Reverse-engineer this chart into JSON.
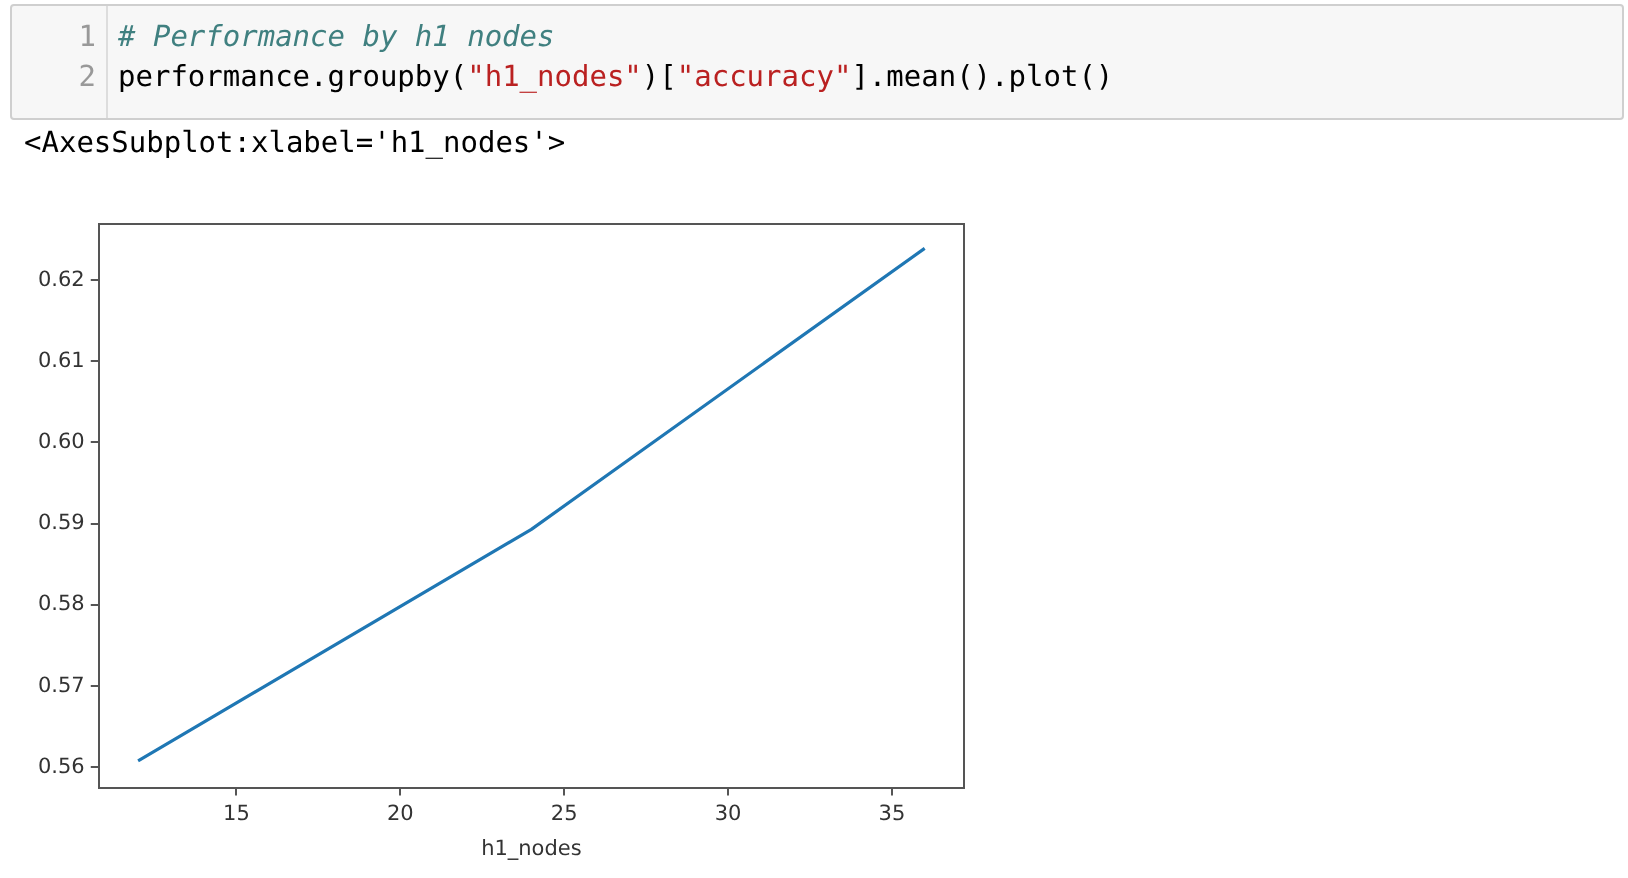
{
  "chart_data": {
    "type": "line",
    "xlabel": "h1_nodes",
    "x": [
      12,
      24,
      36
    ],
    "series": [
      {
        "color": "#1f77b4",
        "values": [
          0.5608,
          0.5893,
          0.6239
        ]
      }
    ],
    "xlim": [
      10.8,
      37.2
    ],
    "xticks": [
      15,
      20,
      25,
      30,
      35
    ],
    "ylim": [
      0.5575,
      0.6269
    ],
    "yticks": [
      {
        "value": 0.56,
        "label": "0.56"
      },
      {
        "value": 0.57,
        "label": "0.57"
      },
      {
        "value": 0.58,
        "label": "0.58"
      },
      {
        "value": 0.59,
        "label": "0.59"
      },
      {
        "value": 0.6,
        "label": "0.60"
      },
      {
        "value": 0.61,
        "label": "0.61"
      },
      {
        "value": 0.62,
        "label": "0.62"
      }
    ],
    "annotations": [
      "1",
      "# Performance by h1 nodes",
      "2",
      "performance.groupby(\"h1_nodes\")[\"accuracy\"].mean().plot()",
      "<AxesSubplot:xlabel='h1_nodes'>"
    ]
  }
}
